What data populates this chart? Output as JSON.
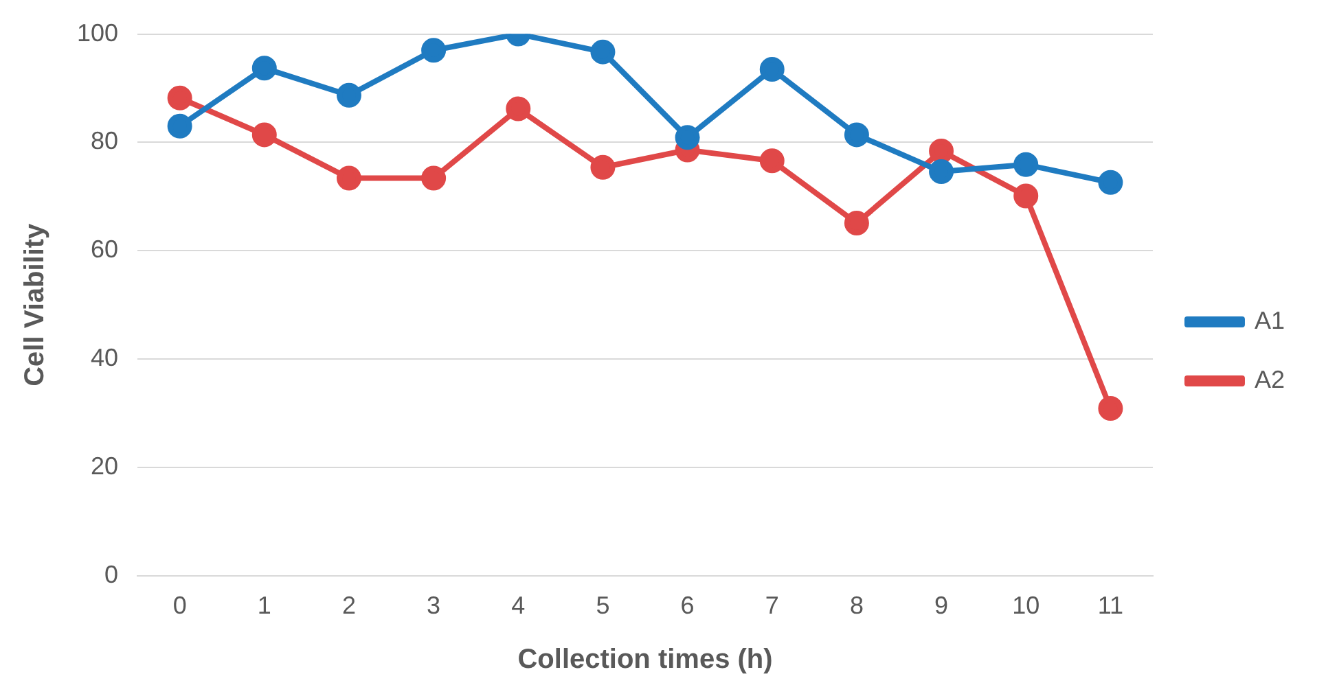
{
  "chart_data": {
    "type": "line",
    "xlabel": "Collection times (h)",
    "ylabel": "Cell Viability",
    "categories": [
      "0",
      "1",
      "2",
      "3",
      "4",
      "5",
      "6",
      "7",
      "8",
      "9",
      "10",
      "11"
    ],
    "series": [
      {
        "name": "A1",
        "color": "#1f7bc1",
        "values": [
          83,
          93.7,
          88.7,
          97,
          100,
          96.7,
          80.9,
          93.5,
          81.4,
          74.6,
          75.9,
          72.6
        ]
      },
      {
        "name": "A2",
        "color": "#e04848",
        "values": [
          88.2,
          81.4,
          73.4,
          73.4,
          86.2,
          75.4,
          78.6,
          76.6,
          65.1,
          78.4,
          70.1,
          30.9
        ]
      }
    ],
    "ylim": [
      0,
      100
    ],
    "yticks": [
      0,
      20,
      40,
      60,
      80,
      100
    ],
    "grid": "y",
    "legend": "right",
    "marker": "circle",
    "line_style": "solid"
  }
}
